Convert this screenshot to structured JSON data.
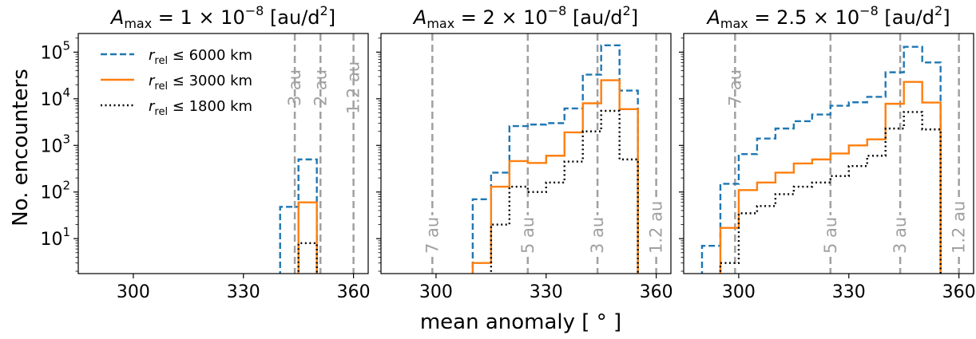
{
  "figure": {
    "ylabel": "No. encounters",
    "xlabel": "mean anomaly [ ° ]"
  },
  "legend": {
    "entries": [
      {
        "prefix": "r",
        "sub": "rel",
        "suffix": "≤ 6000 km",
        "color": "#1f77b4",
        "style": "dashed"
      },
      {
        "prefix": "r",
        "sub": "rel",
        "suffix": "≤ 3000 km",
        "color": "#ff7f0e",
        "style": "solid"
      },
      {
        "prefix": "r",
        "sub": "rel",
        "suffix": "≤ 1800 km",
        "color": "#000000",
        "style": "dotted"
      }
    ]
  },
  "colors": {
    "series_6000": "#1f77b4",
    "series_3000": "#ff7f0e",
    "series_1800": "#000000",
    "reference_lines": "#a0a0a0"
  },
  "chart_data": [
    {
      "type": "histogram-step",
      "title_parts": [
        "A",
        "max",
        " = 1 × 10",
        "−8",
        " [au/d",
        "2",
        "]"
      ],
      "xlim": [
        285,
        364
      ],
      "ylim_log10": [
        0.25,
        5.4
      ],
      "xticks": [
        300,
        330,
        360
      ],
      "yticks_exp": [
        1,
        2,
        3,
        4,
        5
      ],
      "yscale": "log",
      "bin_edges": [
        340,
        345,
        350
      ],
      "series": [
        {
          "name": "r_rel ≤ 6000 km",
          "values": [
            48,
            500
          ]
        },
        {
          "name": "r_rel ≤ 3000 km",
          "values": [
            1,
            60
          ]
        },
        {
          "name": "r_rel ≤ 1800 km",
          "values": [
            1,
            8
          ]
        }
      ],
      "reference_lines": [
        {
          "x": 344,
          "label": "3 au",
          "label_position": "top"
        },
        {
          "x": 351,
          "label": "2 au",
          "label_position": "top"
        },
        {
          "x": 360,
          "label": "1.2 au",
          "label_position": "top"
        }
      ]
    },
    {
      "type": "histogram-step",
      "title_parts": [
        "A",
        "max",
        " = 2 × 10",
        "−8",
        " [au/d",
        "2",
        "]"
      ],
      "xlim": [
        285,
        364
      ],
      "ylim_log10": [
        0.25,
        5.4
      ],
      "xticks": [
        300,
        330,
        360
      ],
      "yticks_exp": [
        1,
        2,
        3,
        4,
        5
      ],
      "yscale": "log",
      "bin_edges": [
        310,
        315,
        320,
        325,
        330,
        335,
        340,
        345,
        350,
        355
      ],
      "series": [
        {
          "name": "r_rel ≤ 6000 km",
          "values": [
            70,
            260,
            2600,
            2800,
            3000,
            6200,
            33000,
            140000,
            15000
          ]
        },
        {
          "name": "r_rel ≤ 3000 km",
          "values": [
            3,
            130,
            460,
            420,
            600,
            1900,
            8000,
            25000,
            6000
          ]
        },
        {
          "name": "r_rel ≤ 1800 km",
          "values": [
            1,
            20,
            130,
            100,
            160,
            450,
            2000,
            5500,
            500
          ]
        }
      ],
      "reference_lines": [
        {
          "x": 299,
          "label": "7 au",
          "label_position": "bottom"
        },
        {
          "x": 325,
          "label": "5 au",
          "label_position": "bottom"
        },
        {
          "x": 344,
          "label": "3 au",
          "label_position": "bottom"
        },
        {
          "x": 360,
          "label": "1.2 au",
          "label_position": "bottom"
        }
      ]
    },
    {
      "type": "histogram-step",
      "title_parts": [
        "A",
        "max",
        " = 2.5 × 10",
        "−8",
        " [au/d",
        "2",
        "]"
      ],
      "xlim": [
        285,
        364
      ],
      "ylim_log10": [
        0.25,
        5.4
      ],
      "xticks": [
        300,
        330,
        360
      ],
      "yticks_exp": [
        1,
        2,
        3,
        4,
        5
      ],
      "yscale": "log",
      "bin_edges": [
        290,
        295,
        300,
        305,
        310,
        315,
        320,
        325,
        330,
        335,
        340,
        345,
        350,
        355
      ],
      "series": [
        {
          "name": "r_rel ≤ 6000 km",
          "values": [
            7,
            150,
            650,
            1400,
            2300,
            3300,
            4600,
            7100,
            8400,
            11000,
            37000,
            130000,
            60000
          ]
        },
        {
          "name": "r_rel ≤ 3000 km",
          "values": [
            1,
            17,
            110,
            160,
            260,
            410,
            500,
            670,
            1000,
            1350,
            7800,
            23000,
            8300
          ]
        },
        {
          "name": "r_rel ≤ 1800 km",
          "values": [
            1,
            3,
            35,
            50,
            90,
            130,
            160,
            220,
            360,
            600,
            2300,
            5200,
            2200
          ]
        }
      ],
      "reference_lines": [
        {
          "x": 299,
          "label": "7 au",
          "label_position": "top"
        },
        {
          "x": 325,
          "label": "5 au",
          "label_position": "bottom"
        },
        {
          "x": 344,
          "label": "3 au",
          "label_position": "bottom"
        },
        {
          "x": 360,
          "label": "1.2 au",
          "label_position": "bottom"
        }
      ]
    }
  ]
}
